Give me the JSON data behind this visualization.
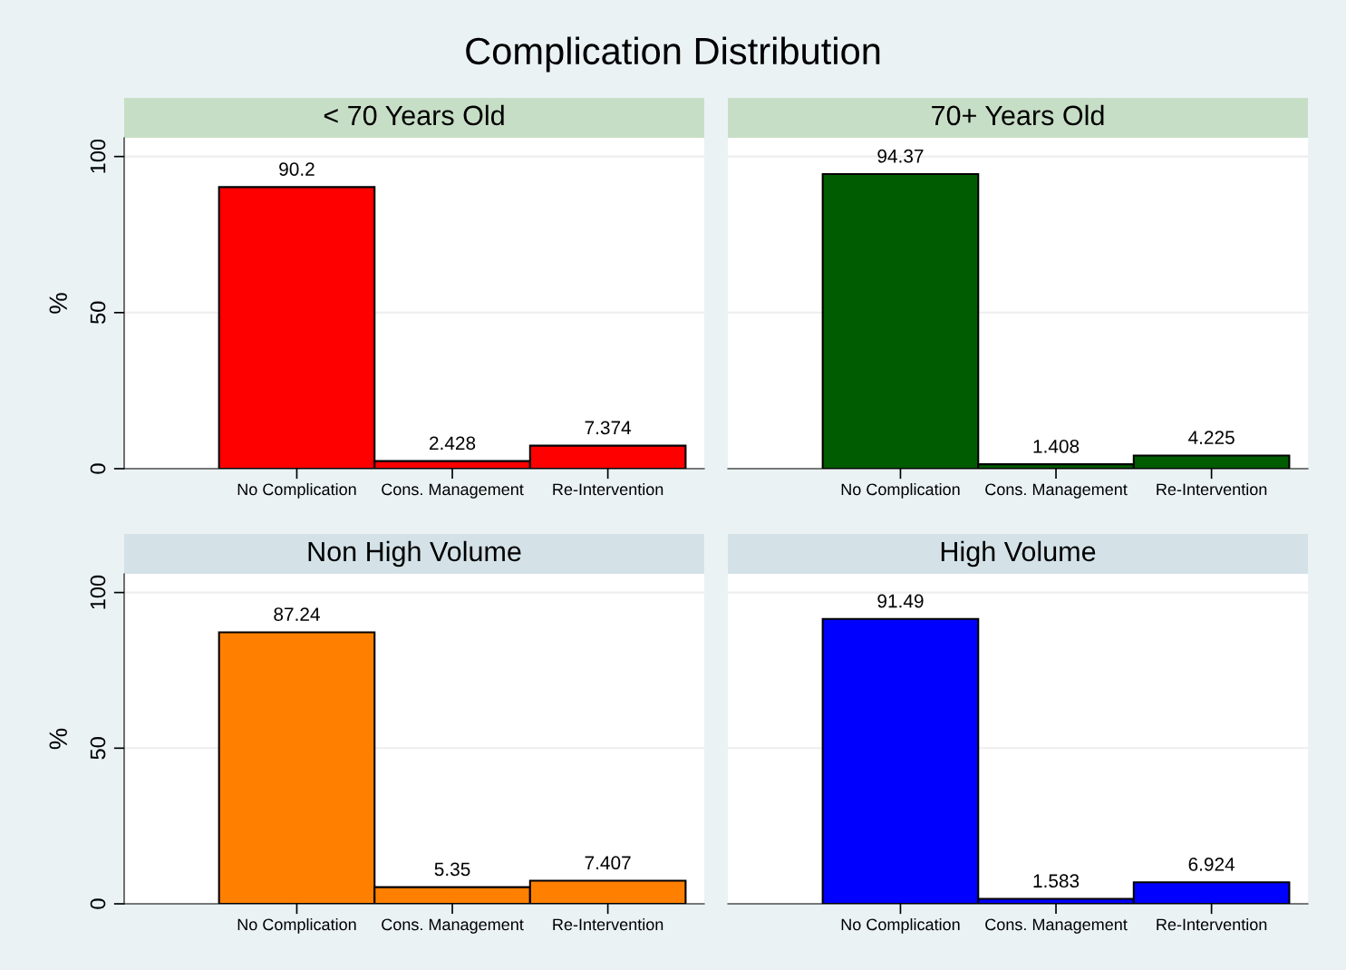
{
  "chart_data": [
    {
      "type": "bar",
      "title": "Complication Distribution",
      "subtitle": "< 70 Years Old",
      "ylabel": "%",
      "categories": [
        "No Complication",
        "Cons. Management",
        "Re-Intervention"
      ],
      "series": [
        {
          "color": "#ff0000",
          "values": [
            90.2,
            2.428,
            7.374
          ]
        }
      ],
      "ylim": [
        0,
        106
      ],
      "yticks": [
        0,
        50,
        100
      ],
      "grid": "y",
      "data_labels": true
    },
    {
      "type": "bar",
      "subtitle": "70+ Years Old",
      "categories": [
        "No Complication",
        "Cons. Management",
        "Re-Intervention"
      ],
      "series": [
        {
          "color": "#005c00",
          "values": [
            94.37,
            1.408,
            4.225
          ]
        }
      ],
      "ylim": [
        0,
        106
      ],
      "yticks": [
        0,
        50,
        100
      ],
      "grid": "y",
      "data_labels": true,
      "tick_labels": "x"
    },
    {
      "type": "bar",
      "subtitle": "Non High Volume",
      "ylabel": "%",
      "categories": [
        "No Complication",
        "Cons. Management",
        "Re-Intervention"
      ],
      "series": [
        {
          "color": "#ff8000",
          "values": [
            87.24,
            5.35,
            7.407
          ]
        }
      ],
      "ylim": [
        0,
        106
      ],
      "yticks": [
        0,
        50,
        100
      ],
      "grid": "y",
      "data_labels": true
    },
    {
      "type": "bar",
      "subtitle": "High Volume",
      "categories": [
        "No Complication",
        "Cons. Management",
        "Re-Intervention"
      ],
      "series": [
        {
          "color": "#0000ff",
          "values": [
            91.49,
            1.583,
            6.924
          ]
        }
      ],
      "ylim": [
        0,
        106
      ],
      "yticks": [
        0,
        50,
        100
      ],
      "grid": "y",
      "data_labels": true,
      "tick_labels": "x"
    }
  ]
}
